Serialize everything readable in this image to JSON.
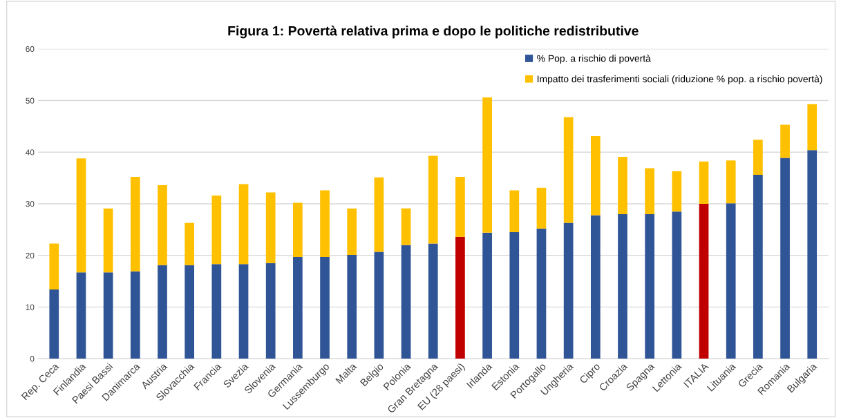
{
  "chart_data": {
    "type": "bar",
    "stacked": true,
    "title": "Figura 1: Povertà relativa prima e dopo le politiche redistributive",
    "categories": [
      "Rep. Ceca",
      "Finlandia",
      "Paesi Bassi",
      "Danimarca",
      "Austria",
      "Slovacchia",
      "Francia",
      "Svezia",
      "Slovenia",
      "Germania",
      "Lussemburgo",
      "Malta",
      "Belgio",
      "Polonia",
      "Gran Bretagna",
      "EU (28 paesi)",
      "Irlanda",
      "Estonia",
      "Portogallo",
      "Ungheria",
      "Cipro",
      "Croazia",
      "Spagna",
      "Lettonia",
      "ITALIA",
      "Lituania",
      "Grecia",
      "Romania",
      "Bulgaria"
    ],
    "series": [
      {
        "name": "% Pop. a rischio di povertà",
        "color": "#2f5597",
        "colors": [
          "#2f5597",
          "#2f5597",
          "#2f5597",
          "#2f5597",
          "#2f5597",
          "#2f5597",
          "#2f5597",
          "#2f5597",
          "#2f5597",
          "#2f5597",
          "#2f5597",
          "#2f5597",
          "#2f5597",
          "#2f5597",
          "#2f5597",
          "#c00000",
          "#2f5597",
          "#2f5597",
          "#2f5597",
          "#2f5597",
          "#2f5597",
          "#2f5597",
          "#2f5597",
          "#2f5597",
          "#c00000",
          "#2f5597",
          "#2f5597",
          "#2f5597",
          "#2f5597"
        ],
        "values": [
          13.4,
          16.7,
          16.7,
          16.9,
          18.1,
          18.1,
          18.3,
          18.3,
          18.5,
          19.7,
          19.7,
          20.1,
          20.7,
          22.0,
          22.3,
          23.6,
          24.4,
          24.5,
          25.2,
          26.3,
          27.8,
          28.0,
          28.0,
          28.5,
          30.0,
          30.1,
          35.6,
          38.9,
          40.4
        ]
      },
      {
        "name": "Impatto dei trasferimenti sociali (riduzione % pop. a rischio povertà)",
        "color": "#ffc000",
        "values": [
          8.9,
          22.1,
          12.4,
          18.3,
          15.5,
          8.2,
          13.3,
          15.5,
          13.7,
          10.5,
          12.9,
          9.0,
          14.4,
          7.1,
          17.0,
          11.6,
          26.2,
          8.1,
          7.9,
          20.5,
          15.3,
          11.1,
          8.9,
          7.8,
          8.2,
          8.3,
          6.8,
          6.4,
          8.9
        ]
      }
    ],
    "ylim": [
      0,
      60
    ],
    "yticks": [
      0,
      10,
      20,
      30,
      40,
      50,
      60
    ],
    "grid": "y",
    "legend": "top right"
  }
}
